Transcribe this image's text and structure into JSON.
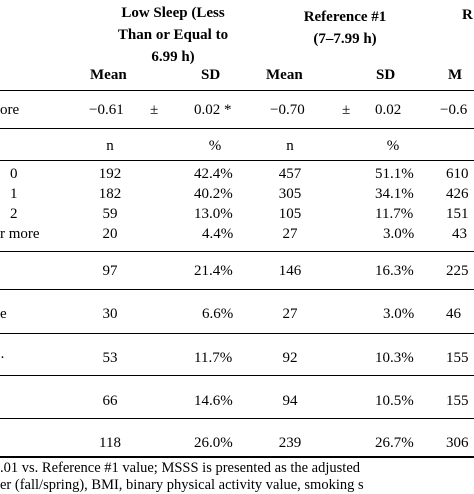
{
  "header": {
    "low_sleep_line1": "Low Sleep (Less",
    "low_sleep_line2": "Than or Equal to",
    "low_sleep_line3": "6.99 h)",
    "ref1_line1": "Reference #1",
    "ref1_line2": "(7–7.99 h)",
    "ref_partial": "R",
    "mean": "Mean",
    "sd": "SD",
    "mean2": "Mean",
    "sd2": "SD",
    "mean3_partial": "M"
  },
  "score_row": {
    "label": "ore",
    "low_mean": "−0.61",
    "pm1": "±",
    "low_sd": "0.02 *",
    "ref_mean": "−0.70",
    "pm2": "±",
    "ref_sd": "0.02",
    "right_partial": "−0.6"
  },
  "count_header": {
    "n1": "n",
    "pct1": "%",
    "n2": "n",
    "pct2": "%"
  },
  "rows": [
    {
      "label": "0",
      "n1": "192",
      "p1": "42.4%",
      "n2": "457",
      "p2": "51.1%",
      "n3": "610"
    },
    {
      "label": "1",
      "n1": "182",
      "p1": "40.2%",
      "n2": "305",
      "p2": "34.1%",
      "n3": "426"
    },
    {
      "label": "2",
      "n1": "59",
      "p1": "13.0%",
      "n2": "105",
      "p2": "11.7%",
      "n3": "151"
    },
    {
      "label": "r more",
      "n1": "20",
      "p1": "4.4%",
      "n2": "27",
      "p2": "3.0%",
      "n3": "43"
    },
    {
      "label": "",
      "n1": "97",
      "p1": "21.4%",
      "n2": "146",
      "p2": "16.3%",
      "n3": "225"
    },
    {
      "label": "e",
      "n1": "30",
      "p1": "6.6%",
      "n2": "27",
      "p2": "3.0%",
      "n3": "46"
    },
    {
      "label": "·",
      "n1": "53",
      "p1": "11.7%",
      "n2": "92",
      "p2": "10.3%",
      "n3": "155"
    },
    {
      "label": "",
      "n1": "66",
      "p1": "14.6%",
      "n2": "94",
      "p2": "10.5%",
      "n3": "155"
    },
    {
      "label": "",
      "n1": "118",
      "p1": "26.0%",
      "n2": "239",
      "p2": "26.7%",
      "n3": "306"
    }
  ],
  "footnote": {
    "line1": ".01 vs. Reference #1 value; MSSS is presented as the adjusted",
    "line2": "er (fall/spring), BMI, binary physical activity value, smoking s"
  }
}
